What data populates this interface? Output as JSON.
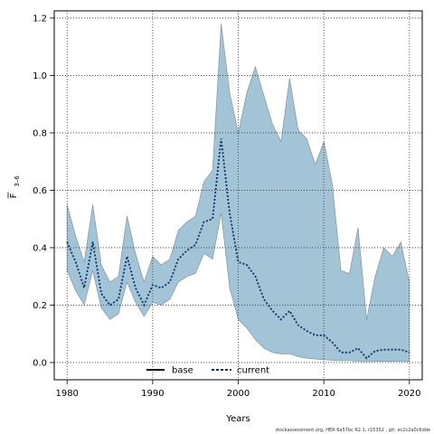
{
  "chart_data": {
    "type": "area",
    "xlabel": "Years",
    "ylabel_main": "F",
    "ylabel_sub": "3–6",
    "xlim": [
      1978.5,
      2021.5
    ],
    "ylim": [
      -0.06,
      1.225
    ],
    "xticks": [
      1980,
      1990,
      2000,
      2010,
      2020
    ],
    "yticks": [
      0.0,
      0.2,
      0.4,
      0.6,
      0.8,
      1.0,
      1.2
    ],
    "ytick_labels": [
      "0.0",
      "0.2",
      "0.4",
      "0.6",
      "0.8",
      "1.0",
      "1.2"
    ],
    "grid": true,
    "legend_position": "bottom-center",
    "legend": [
      "base",
      "current"
    ],
    "x": [
      1980,
      1981,
      1982,
      1983,
      1984,
      1985,
      1986,
      1987,
      1988,
      1989,
      1990,
      1991,
      1992,
      1993,
      1994,
      1995,
      1996,
      1997,
      1998,
      1999,
      2000,
      2001,
      2002,
      2003,
      2004,
      2005,
      2006,
      2007,
      2008,
      2009,
      2010,
      2011,
      2012,
      2013,
      2014,
      2015,
      2016,
      2017,
      2018,
      2019,
      2020
    ],
    "series": [
      {
        "name": "current",
        "style": "dotted",
        "values": [
          0.42,
          0.35,
          0.26,
          0.42,
          0.24,
          0.2,
          0.22,
          0.37,
          0.26,
          0.2,
          0.27,
          0.26,
          0.28,
          0.36,
          0.39,
          0.41,
          0.49,
          0.5,
          0.78,
          0.52,
          0.35,
          0.34,
          0.3,
          0.22,
          0.18,
          0.15,
          0.18,
          0.13,
          0.11,
          0.095,
          0.095,
          0.07,
          0.035,
          0.035,
          0.05,
          0.015,
          0.04,
          0.045,
          0.045,
          0.045,
          0.035
        ],
        "band_upper": [
          0.55,
          0.44,
          0.35,
          0.55,
          0.34,
          0.28,
          0.3,
          0.51,
          0.38,
          0.28,
          0.37,
          0.34,
          0.36,
          0.46,
          0.49,
          0.51,
          0.63,
          0.67,
          1.18,
          0.94,
          0.8,
          0.94,
          1.03,
          0.93,
          0.83,
          0.77,
          0.99,
          0.81,
          0.78,
          0.69,
          0.77,
          0.62,
          0.32,
          0.31,
          0.47,
          0.15,
          0.3,
          0.4,
          0.37,
          0.42,
          0.28
        ],
        "band_lower": [
          0.32,
          0.25,
          0.2,
          0.32,
          0.19,
          0.15,
          0.17,
          0.28,
          0.21,
          0.16,
          0.21,
          0.2,
          0.22,
          0.28,
          0.3,
          0.31,
          0.38,
          0.36,
          0.52,
          0.26,
          0.15,
          0.12,
          0.08,
          0.05,
          0.035,
          0.03,
          0.03,
          0.02,
          0.015,
          0.012,
          0.01,
          0.008,
          0.006,
          0.006,
          0.005,
          0.003,
          0.004,
          0.004,
          0.004,
          0.004,
          0.003
        ]
      }
    ],
    "band_color": "#a3c4d6",
    "band_edge_color": "#7a8a95",
    "line_color": "#000000"
  },
  "footer": "stockassessment.org, HER 6a57bc R2.1, r15352 , git: ec2c2a0c6dde"
}
